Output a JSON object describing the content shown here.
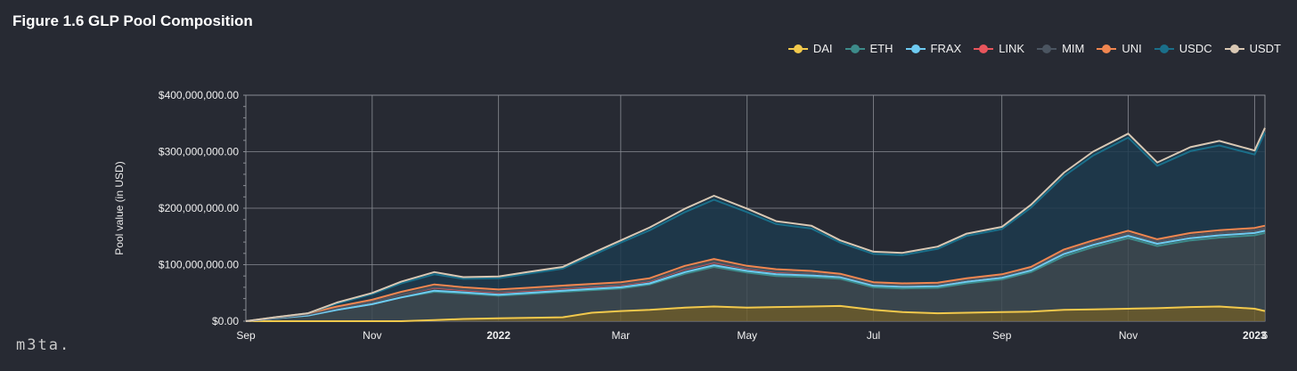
{
  "page": {
    "title": "Figure 1.6 GLP Pool Composition",
    "logo": "m3ta."
  },
  "legend": [
    {
      "label": "DAI",
      "color": "#f2c94c",
      "icon": "line-dot-marker"
    },
    {
      "label": "ETH",
      "color": "#3d8b8a",
      "icon": "line-dot-marker"
    },
    {
      "label": "FRAX",
      "color": "#6ecbf2",
      "icon": "line-dot-marker"
    },
    {
      "label": "LINK",
      "color": "#e8555c",
      "icon": "line-dot-marker"
    },
    {
      "label": "MIM",
      "color": "#4b5561",
      "icon": "line-dot-marker"
    },
    {
      "label": "UNI",
      "color": "#f08650",
      "icon": "line-dot-marker"
    },
    {
      "label": "USDC",
      "color": "#1a6f8a",
      "icon": "line-dot-marker"
    },
    {
      "label": "USDT",
      "color": "#d9c8b4",
      "icon": "line-dot-marker"
    }
  ],
  "chart_data": {
    "type": "area",
    "stacked": true,
    "title": "Figure 1.6 GLP Pool Composition",
    "ylabel": "Pool value (in USD)",
    "xlabel": "",
    "ylim": [
      0,
      400000000
    ],
    "yticks": [
      {
        "value": 0,
        "label": "$0.00"
      },
      {
        "value": 100000000,
        "label": "$100,000,000.00"
      },
      {
        "value": 200000000,
        "label": "$200,000,000.00"
      },
      {
        "value": 300000000,
        "label": "$300,000,000.00"
      },
      {
        "value": 400000000,
        "label": "$400,000,000.00"
      }
    ],
    "xticks": [
      {
        "date": "2021-09-01",
        "label": "Sep",
        "bold": false
      },
      {
        "date": "2021-11-01",
        "label": "Nov",
        "bold": false
      },
      {
        "date": "2022-01-01",
        "label": "2022",
        "bold": true
      },
      {
        "date": "2022-03-01",
        "label": "Mar",
        "bold": false
      },
      {
        "date": "2022-05-01",
        "label": "May",
        "bold": false
      },
      {
        "date": "2022-07-01",
        "label": "Jul",
        "bold": false
      },
      {
        "date": "2022-09-01",
        "label": "Sep",
        "bold": false
      },
      {
        "date": "2022-11-01",
        "label": "Nov",
        "bold": false
      },
      {
        "date": "2023-01-01",
        "label": "2023",
        "bold": true
      },
      {
        "date": "2023-01-06",
        "label": "6",
        "bold": false
      }
    ],
    "xlim": [
      "2021-09-01",
      "2023-01-06"
    ],
    "grid": true,
    "legend_position": "top-right",
    "x": [
      "2021-09-01",
      "2021-09-15",
      "2021-10-01",
      "2021-10-15",
      "2021-11-01",
      "2021-11-15",
      "2021-12-01",
      "2021-12-15",
      "2022-01-01",
      "2022-01-15",
      "2022-02-01",
      "2022-02-15",
      "2022-03-01",
      "2022-03-15",
      "2022-04-01",
      "2022-04-15",
      "2022-05-01",
      "2022-05-15",
      "2022-06-01",
      "2022-06-15",
      "2022-07-01",
      "2022-07-15",
      "2022-08-01",
      "2022-08-15",
      "2022-09-01",
      "2022-09-15",
      "2022-10-01",
      "2022-10-15",
      "2022-11-01",
      "2022-11-15",
      "2022-12-01",
      "2022-12-15",
      "2023-01-01",
      "2023-01-06"
    ],
    "series": [
      {
        "name": "DAI",
        "color": "#f2c94c",
        "fill": "#6e5f2f",
        "values": [
          0,
          0,
          0,
          0,
          0,
          0,
          2000000,
          4000000,
          5000000,
          6000000,
          7000000,
          15000000,
          18000000,
          20000000,
          24000000,
          26000000,
          24000000,
          25000000,
          26000000,
          27000000,
          20000000,
          16000000,
          14000000,
          15000000,
          16000000,
          17000000,
          20000000,
          21000000,
          22000000,
          23000000,
          25000000,
          26000000,
          22000000,
          18000000
        ]
      },
      {
        "name": "ETH",
        "color": "#3d8b8a",
        "fill": "#3d4a52",
        "values": [
          0,
          5000000,
          10000000,
          20000000,
          30000000,
          42000000,
          50000000,
          45000000,
          40000000,
          42000000,
          45000000,
          40000000,
          40000000,
          45000000,
          60000000,
          70000000,
          62000000,
          55000000,
          52000000,
          48000000,
          40000000,
          42000000,
          45000000,
          52000000,
          58000000,
          70000000,
          95000000,
          110000000,
          125000000,
          110000000,
          118000000,
          122000000,
          130000000,
          138000000
        ]
      },
      {
        "name": "FRAX",
        "color": "#6ecbf2",
        "fill": "#3d4a52",
        "values": [
          0,
          0,
          0,
          0,
          0,
          0,
          2000000,
          2000000,
          2000000,
          2000000,
          2000000,
          2000000,
          2000000,
          2000000,
          3000000,
          3000000,
          3000000,
          3000000,
          3000000,
          3000000,
          3000000,
          3000000,
          3000000,
          3000000,
          3000000,
          3000000,
          4000000,
          4000000,
          4000000,
          4000000,
          4000000,
          4000000,
          4000000,
          4000000
        ]
      },
      {
        "name": "LINK",
        "color": "#e8555c",
        "fill": "#3d4a52",
        "values": [
          0,
          1000000,
          2000000,
          3000000,
          4000000,
          5000000,
          5000000,
          4000000,
          4000000,
          4000000,
          4000000,
          4000000,
          4000000,
          4000000,
          5000000,
          5000000,
          4000000,
          4000000,
          4000000,
          3000000,
          3000000,
          3000000,
          3000000,
          3000000,
          3000000,
          3000000,
          4000000,
          4000000,
          4000000,
          4000000,
          4000000,
          4000000,
          4000000,
          4000000
        ]
      },
      {
        "name": "MIM",
        "color": "#4b5561",
        "fill": "#3d4a52",
        "values": [
          0,
          0,
          0,
          0,
          0,
          0,
          1000000,
          1000000,
          1000000,
          1000000,
          1000000,
          1000000,
          1000000,
          1000000,
          1000000,
          1000000,
          1000000,
          1000000,
          0,
          0,
          0,
          0,
          0,
          0,
          0,
          0,
          0,
          0,
          0,
          0,
          0,
          0,
          0,
          0
        ]
      },
      {
        "name": "UNI",
        "color": "#f08650",
        "fill": "#3d4a52",
        "values": [
          0,
          1000000,
          2000000,
          3000000,
          4000000,
          5000000,
          5000000,
          4000000,
          4000000,
          4000000,
          4000000,
          4000000,
          4000000,
          4000000,
          5000000,
          5000000,
          4000000,
          4000000,
          4000000,
          3000000,
          3000000,
          3000000,
          3000000,
          3000000,
          3000000,
          3000000,
          4000000,
          4000000,
          5000000,
          4000000,
          5000000,
          5000000,
          5000000,
          5000000
        ]
      },
      {
        "name": "USDC",
        "color": "#1a6f8a",
        "fill": "#1d3a4d",
        "values": [
          0,
          0,
          0,
          5000000,
          10000000,
          15000000,
          18000000,
          15000000,
          20000000,
          25000000,
          30000000,
          50000000,
          70000000,
          85000000,
          95000000,
          105000000,
          95000000,
          80000000,
          75000000,
          55000000,
          50000000,
          50000000,
          60000000,
          75000000,
          80000000,
          105000000,
          130000000,
          150000000,
          165000000,
          130000000,
          145000000,
          150000000,
          130000000,
          165000000
        ]
      },
      {
        "name": "USDT",
        "color": "#d9c8b4",
        "fill": "#1d3a4d",
        "values": [
          0,
          0,
          0,
          2000000,
          2000000,
          3000000,
          4000000,
          3000000,
          3000000,
          3000000,
          3000000,
          4000000,
          4000000,
          5000000,
          6000000,
          7000000,
          6000000,
          5000000,
          5000000,
          4000000,
          4000000,
          4000000,
          4000000,
          4000000,
          4000000,
          5000000,
          6000000,
          7000000,
          7000000,
          6000000,
          7000000,
          8000000,
          7000000,
          8000000
        ]
      }
    ]
  }
}
